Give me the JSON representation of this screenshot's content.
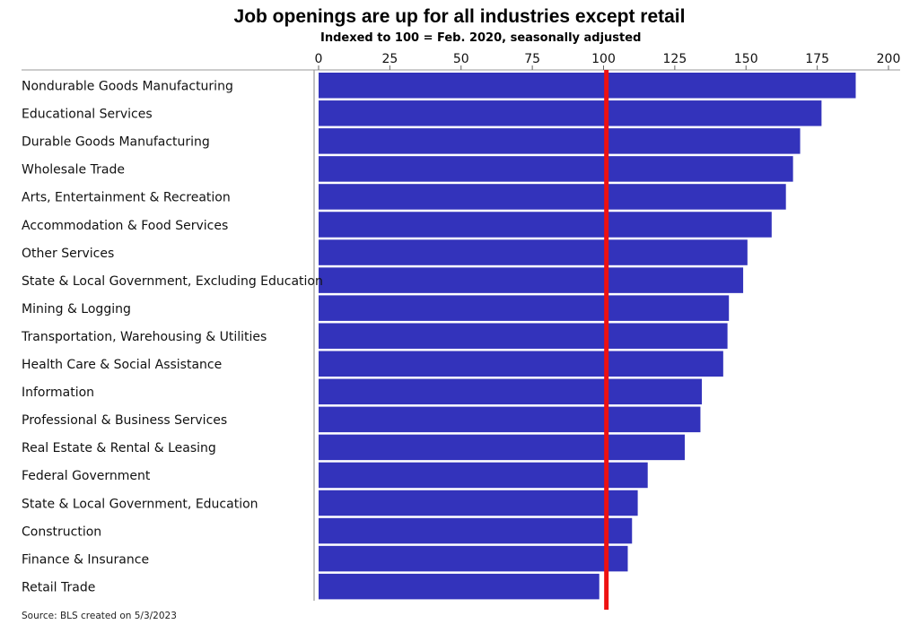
{
  "chart_data": {
    "type": "bar",
    "orientation": "horizontal",
    "title": "Job openings are up for all industries except retail",
    "subtitle": "Indexed to 100 = Feb. 2020, seasonally adjusted",
    "categories": [
      "Nondurable Goods Manufacturing",
      "Educational Services",
      "Durable Goods Manufacturing",
      "Wholesale Trade",
      "Arts, Entertainment & Recreation",
      "Accommodation & Food Services",
      "Other Services",
      "State & Local Government, Excluding Education",
      "Mining & Logging",
      "Transportation, Warehousing & Utilities",
      "Health Care & Social Assistance",
      "Information",
      "Professional & Business Services",
      "Real Estate & Rental & Leasing",
      "Federal Government",
      "State & Local Government, Education",
      "Construction",
      "Finance & Insurance",
      "Retail Trade"
    ],
    "values": [
      188.5,
      176.5,
      169,
      166.5,
      164,
      159,
      150.5,
      149,
      144,
      143.5,
      142,
      134.5,
      134,
      128.5,
      115.5,
      112,
      110,
      108.5,
      98.5
    ],
    "xlim": [
      0,
      202
    ],
    "xticks": [
      "0",
      "25",
      "50",
      "75",
      "100",
      "125",
      "150",
      "175",
      "200"
    ],
    "xtick_values": [
      0,
      25,
      50,
      75,
      100,
      125,
      150,
      175,
      200
    ],
    "axis_position": "top",
    "reference_line": 101,
    "colors": {
      "bar": "#3333bb",
      "reference_line": "#ee1111",
      "axis": "#999999"
    }
  },
  "footer": {
    "source": "Source: BLS created on 5/3/2023"
  }
}
